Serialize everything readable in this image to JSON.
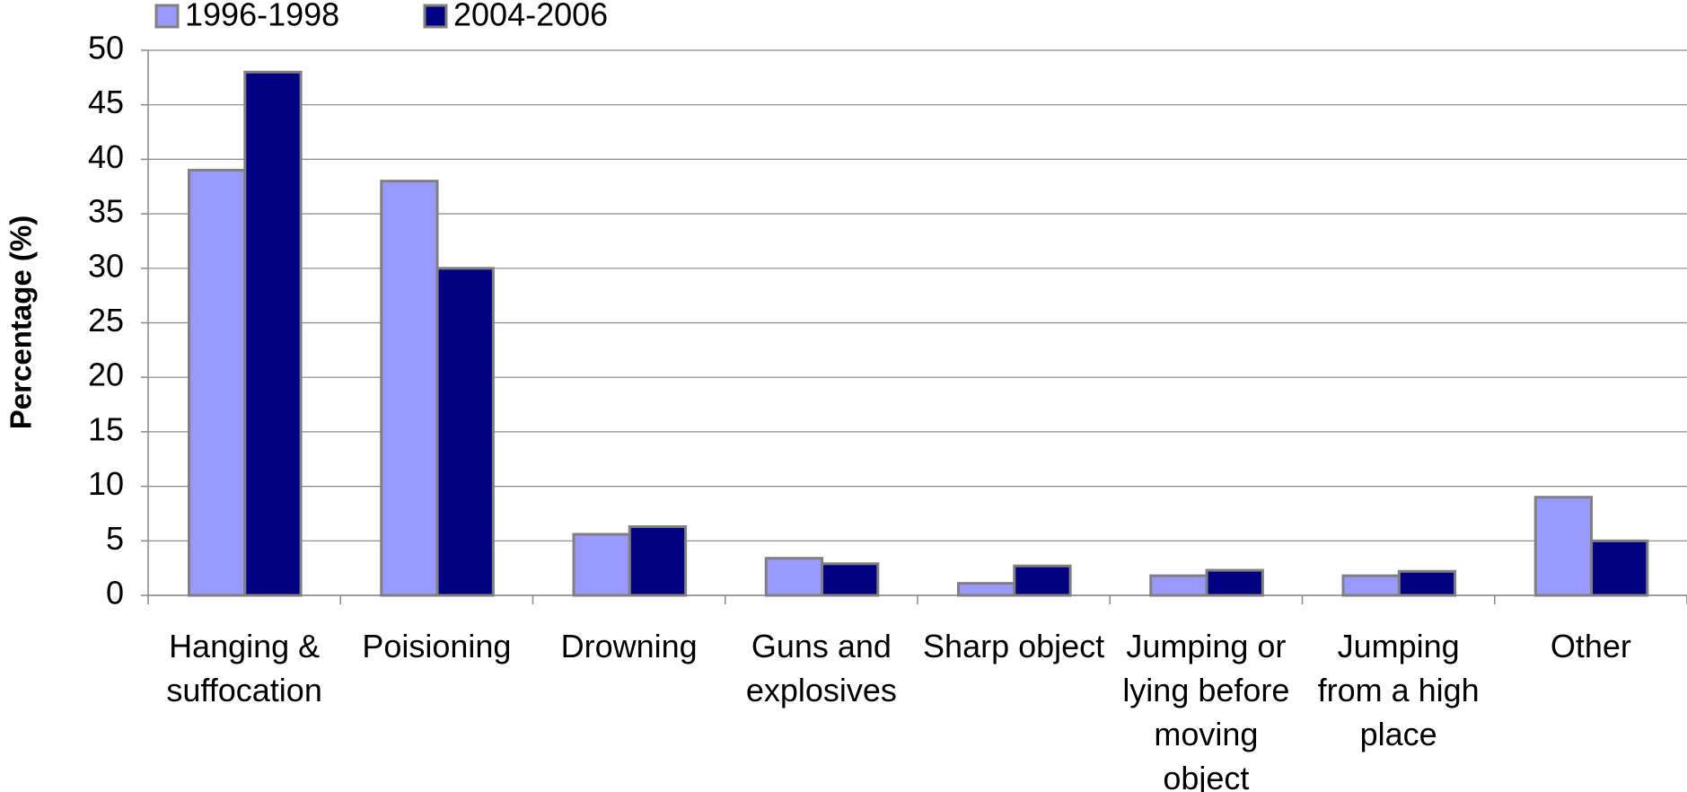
{
  "chart_data": {
    "type": "bar",
    "y_label": "Percentage (%)",
    "categories": [
      "Hanging & suffocation",
      "Poisioning",
      "Drowning",
      "Guns and explosives",
      "Sharp object",
      "Jumping or lying before moving object",
      "Jumping from a high place",
      "Other"
    ],
    "series": [
      {
        "name": "1996-1998",
        "color": "#9999ff",
        "values": [
          39,
          38,
          5.6,
          3.4,
          1.1,
          1.8,
          1.8,
          9
        ]
      },
      {
        "name": "2004-2006",
        "color": "#000080",
        "values": [
          48,
          30,
          6.3,
          2.9,
          2.7,
          2.3,
          2.2,
          5
        ]
      }
    ],
    "ylim": [
      0,
      50
    ],
    "yticks": [
      0,
      5,
      10,
      15,
      20,
      25,
      30,
      35,
      40,
      45,
      50
    ],
    "grid": true,
    "legend": "top-left"
  }
}
